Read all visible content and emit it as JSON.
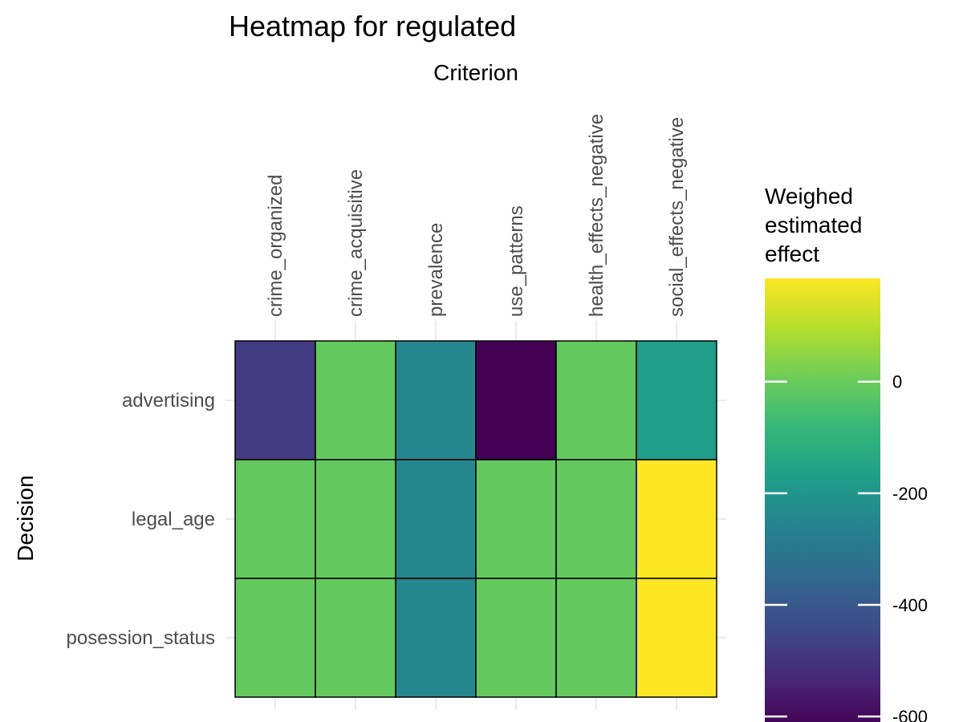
{
  "chart_data": {
    "type": "heatmap",
    "title": "Heatmap for regulated",
    "xlabel": "Criterion",
    "ylabel": "Decision",
    "x_axis_position": "top",
    "x_categories": [
      "crime_organized",
      "crime_acquisitive",
      "prevalence",
      "use_patterns",
      "health_effects_negative",
      "social_effects_negative"
    ],
    "y_categories": [
      "advertising",
      "legal_age",
      "posession_status"
    ],
    "values": [
      [
        -480,
        -10,
        -250,
        -620,
        -10,
        -175
      ],
      [
        -10,
        -10,
        -250,
        -10,
        -10,
        185
      ],
      [
        -10,
        -10,
        -250,
        -10,
        -10,
        185
      ]
    ],
    "colorscale": "viridis",
    "color_range": [
      -620,
      185
    ],
    "legend": {
      "title_lines": [
        "Weighed",
        "estimated",
        "effect"
      ],
      "ticks": [
        0,
        -200,
        -400,
        -600
      ],
      "tick_labels": [
        "0",
        "-200",
        "-400",
        "-600"
      ],
      "position": "right"
    },
    "grid": true
  }
}
